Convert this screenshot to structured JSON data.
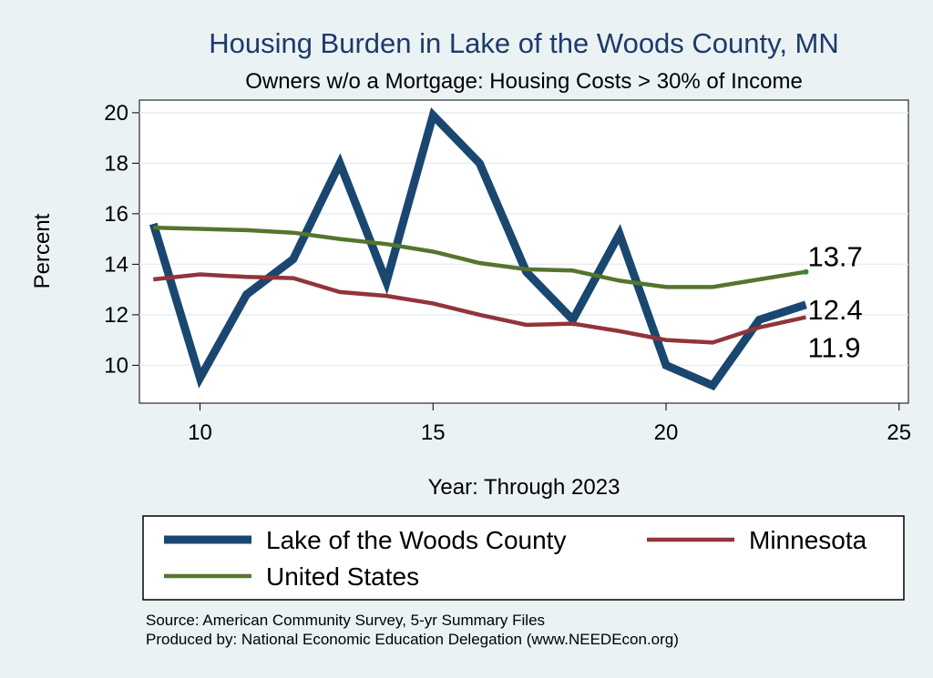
{
  "chart_data": {
    "type": "line",
    "title": "Housing Burden in Lake of the Woods County, MN",
    "subtitle": "Owners w/o a Mortgage: Housing Costs > 30% of Income",
    "xlabel": "Year: Through 2023",
    "ylabel": "Percent",
    "xlim": [
      8.7,
      25.2
    ],
    "ylim": [
      8.5,
      20.5
    ],
    "xticks": [
      10,
      15,
      20,
      25
    ],
    "yticks": [
      10,
      12,
      14,
      16,
      18,
      20
    ],
    "grid": true,
    "legend_position": "bottom",
    "x": [
      9,
      10,
      11,
      12,
      13,
      14,
      15,
      16,
      17,
      18,
      19,
      20,
      21,
      22,
      23
    ],
    "series": [
      {
        "name": "Lake of the Woods County",
        "color": "#1a476f",
        "values": [
          15.6,
          9.5,
          12.8,
          14.2,
          18.0,
          13.3,
          19.9,
          18.0,
          13.7,
          11.8,
          15.2,
          10.0,
          9.2,
          11.8,
          12.4
        ],
        "end_label": "12.4"
      },
      {
        "name": "Minnesota",
        "color": "#90353b",
        "values": [
          13.4,
          13.6,
          13.5,
          13.45,
          12.9,
          12.75,
          12.45,
          12.0,
          11.6,
          11.65,
          11.35,
          11.0,
          10.9,
          11.5,
          11.9
        ],
        "end_label": "11.9"
      },
      {
        "name": "United States",
        "color": "#55752f",
        "values": [
          15.45,
          15.4,
          15.35,
          15.25,
          15.0,
          14.8,
          14.5,
          14.05,
          13.8,
          13.75,
          13.35,
          13.1,
          13.1,
          13.4,
          13.7
        ],
        "end_label": "13.7"
      }
    ]
  },
  "footer": {
    "source": "Source: American Community Survey, 5-yr Summary Files",
    "produced": "Produced by: National Economic Education Delegation (www.NEEDEcon.org)"
  }
}
